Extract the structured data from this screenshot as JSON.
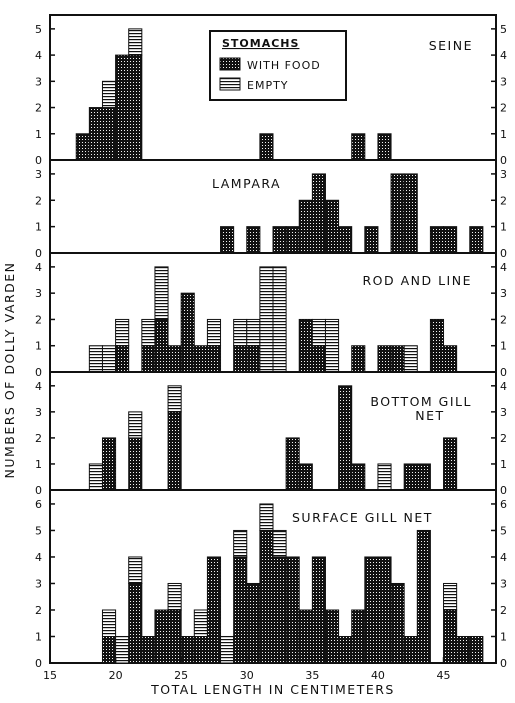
{
  "chart_data": {
    "type": "bar",
    "stacked": true,
    "xlabel": "TOTAL LENGTH IN CENTIMETERS",
    "ylabel": "NUMBERS OF DOLLY VARDEN",
    "xlim": [
      15,
      49
    ],
    "xticks": [
      15,
      20,
      25,
      30,
      35,
      40,
      45
    ],
    "bin_width": 1,
    "legend": {
      "title": "STOMACHS",
      "placement": "top-center",
      "entries": [
        {
          "label": "WITH FOOD",
          "series": "with_food"
        },
        {
          "label": "EMPTY",
          "series": "empty"
        }
      ]
    },
    "series_styles": {
      "with_food": {
        "fill": "dotted-dark",
        "color": "#111111"
      },
      "empty": {
        "fill": "horizontal-lines",
        "color": "#111111"
      }
    },
    "panels": [
      {
        "title": "SEINE",
        "ylim": [
          0,
          5.3
        ],
        "yticks": [
          0,
          1,
          2,
          3,
          4,
          5
        ],
        "bins": [
          {
            "x": 17,
            "with_food": 1,
            "empty": 0
          },
          {
            "x": 18,
            "with_food": 2,
            "empty": 0
          },
          {
            "x": 19,
            "with_food": 2,
            "empty": 1
          },
          {
            "x": 20,
            "with_food": 4,
            "empty": 0
          },
          {
            "x": 21,
            "with_food": 4,
            "empty": 1
          },
          {
            "x": 31,
            "with_food": 1,
            "empty": 0
          },
          {
            "x": 38,
            "with_food": 1,
            "empty": 0
          },
          {
            "x": 40,
            "with_food": 1,
            "empty": 0
          }
        ]
      },
      {
        "title": "LAMPARA",
        "ylim": [
          0,
          3.3
        ],
        "yticks": [
          0,
          1,
          2,
          3
        ],
        "bins": [
          {
            "x": 28,
            "with_food": 1,
            "empty": 0
          },
          {
            "x": 30,
            "with_food": 1,
            "empty": 0
          },
          {
            "x": 32,
            "with_food": 1,
            "empty": 0
          },
          {
            "x": 33,
            "with_food": 1,
            "empty": 0
          },
          {
            "x": 34,
            "with_food": 2,
            "empty": 0
          },
          {
            "x": 35,
            "with_food": 3,
            "empty": 0
          },
          {
            "x": 36,
            "with_food": 2,
            "empty": 0
          },
          {
            "x": 37,
            "with_food": 1,
            "empty": 0
          },
          {
            "x": 39,
            "with_food": 1,
            "empty": 0
          },
          {
            "x": 41,
            "with_food": 3,
            "empty": 0
          },
          {
            "x": 42,
            "with_food": 3,
            "empty": 0
          },
          {
            "x": 44,
            "with_food": 1,
            "empty": 0
          },
          {
            "x": 45,
            "with_food": 1,
            "empty": 0
          },
          {
            "x": 47,
            "with_food": 1,
            "empty": 0
          }
        ]
      },
      {
        "title": "ROD AND LINE",
        "ylim": [
          0,
          4.3
        ],
        "yticks": [
          0,
          1,
          2,
          3,
          4
        ],
        "bins": [
          {
            "x": 18,
            "with_food": 0,
            "empty": 1
          },
          {
            "x": 19,
            "with_food": 0,
            "empty": 1
          },
          {
            "x": 20,
            "with_food": 1,
            "empty": 1
          },
          {
            "x": 22,
            "with_food": 1,
            "empty": 1
          },
          {
            "x": 23,
            "with_food": 2,
            "empty": 2
          },
          {
            "x": 24,
            "with_food": 1,
            "empty": 0
          },
          {
            "x": 25,
            "with_food": 3,
            "empty": 0
          },
          {
            "x": 26,
            "with_food": 1,
            "empty": 0
          },
          {
            "x": 27,
            "with_food": 1,
            "empty": 1
          },
          {
            "x": 29,
            "with_food": 1,
            "empty": 1
          },
          {
            "x": 30,
            "with_food": 1,
            "empty": 1
          },
          {
            "x": 31,
            "with_food": 0,
            "empty": 4
          },
          {
            "x": 32,
            "with_food": 0,
            "empty": 4
          },
          {
            "x": 34,
            "with_food": 2,
            "empty": 0
          },
          {
            "x": 35,
            "with_food": 1,
            "empty": 1
          },
          {
            "x": 36,
            "with_food": 0,
            "empty": 2
          },
          {
            "x": 38,
            "with_food": 1,
            "empty": 0
          },
          {
            "x": 40,
            "with_food": 1,
            "empty": 0
          },
          {
            "x": 41,
            "with_food": 1,
            "empty": 0
          },
          {
            "x": 42,
            "with_food": 0,
            "empty": 1
          },
          {
            "x": 44,
            "with_food": 2,
            "empty": 0
          },
          {
            "x": 45,
            "with_food": 1,
            "empty": 0
          }
        ]
      },
      {
        "title": "BOTTOM GILL NET",
        "ylim": [
          0,
          4.3
        ],
        "yticks": [
          0,
          1,
          2,
          3,
          4
        ],
        "bins": [
          {
            "x": 18,
            "with_food": 0,
            "empty": 1
          },
          {
            "x": 19,
            "with_food": 2,
            "empty": 0
          },
          {
            "x": 21,
            "with_food": 2,
            "empty": 1
          },
          {
            "x": 24,
            "with_food": 3,
            "empty": 1
          },
          {
            "x": 33,
            "with_food": 2,
            "empty": 0
          },
          {
            "x": 34,
            "with_food": 1,
            "empty": 0
          },
          {
            "x": 37,
            "with_food": 4,
            "empty": 0
          },
          {
            "x": 38,
            "with_food": 1,
            "empty": 0
          },
          {
            "x": 40,
            "with_food": 0,
            "empty": 1
          },
          {
            "x": 42,
            "with_food": 1,
            "empty": 0
          },
          {
            "x": 43,
            "with_food": 1,
            "empty": 0
          },
          {
            "x": 45,
            "with_food": 2,
            "empty": 0
          }
        ]
      },
      {
        "title": "SURFACE GILL NET",
        "ylim": [
          0,
          6.3
        ],
        "yticks": [
          0,
          1,
          2,
          3,
          4,
          5,
          6
        ],
        "bins": [
          {
            "x": 19,
            "with_food": 1,
            "empty": 1
          },
          {
            "x": 20,
            "with_food": 0,
            "empty": 1
          },
          {
            "x": 21,
            "with_food": 3,
            "empty": 1
          },
          {
            "x": 22,
            "with_food": 1,
            "empty": 0
          },
          {
            "x": 23,
            "with_food": 2,
            "empty": 0
          },
          {
            "x": 24,
            "with_food": 2,
            "empty": 1
          },
          {
            "x": 25,
            "with_food": 1,
            "empty": 0
          },
          {
            "x": 26,
            "with_food": 1,
            "empty": 1
          },
          {
            "x": 27,
            "with_food": 4,
            "empty": 0
          },
          {
            "x": 28,
            "with_food": 0,
            "empty": 1
          },
          {
            "x": 29,
            "with_food": 4,
            "empty": 1
          },
          {
            "x": 30,
            "with_food": 3,
            "empty": 0
          },
          {
            "x": 31,
            "with_food": 5,
            "empty": 1
          },
          {
            "x": 32,
            "with_food": 4,
            "empty": 1
          },
          {
            "x": 33,
            "with_food": 4,
            "empty": 0
          },
          {
            "x": 34,
            "with_food": 2,
            "empty": 0
          },
          {
            "x": 35,
            "with_food": 4,
            "empty": 0
          },
          {
            "x": 36,
            "with_food": 2,
            "empty": 0
          },
          {
            "x": 37,
            "with_food": 1,
            "empty": 0
          },
          {
            "x": 38,
            "with_food": 2,
            "empty": 0
          },
          {
            "x": 39,
            "with_food": 4,
            "empty": 0
          },
          {
            "x": 40,
            "with_food": 4,
            "empty": 0
          },
          {
            "x": 41,
            "with_food": 3,
            "empty": 0
          },
          {
            "x": 42,
            "with_food": 1,
            "empty": 0
          },
          {
            "x": 43,
            "with_food": 5,
            "empty": 0
          },
          {
            "x": 45,
            "with_food": 2,
            "empty": 1
          },
          {
            "x": 46,
            "with_food": 1,
            "empty": 0
          },
          {
            "x": 47,
            "with_food": 1,
            "empty": 0
          }
        ]
      }
    ]
  }
}
